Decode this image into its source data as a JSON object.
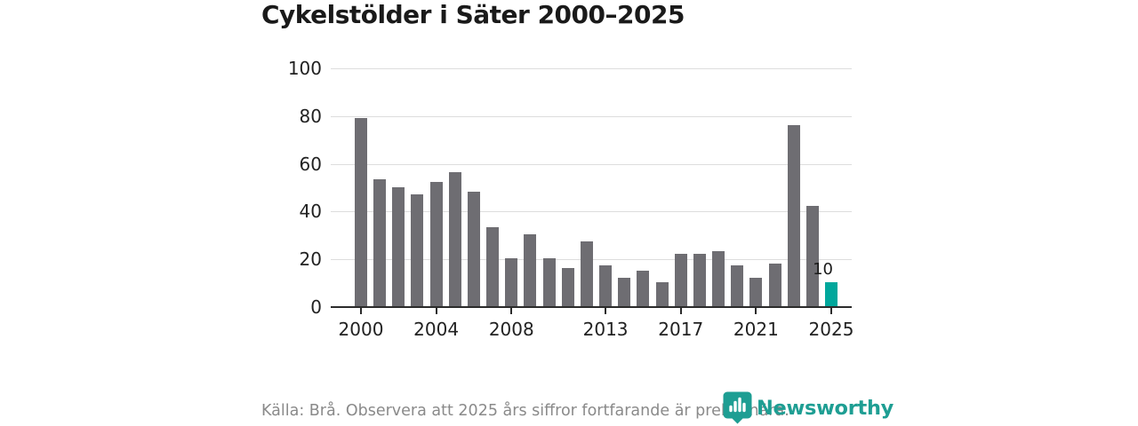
{
  "title": "Cykelstölder i Säter 2000–2025",
  "footer": {
    "source_note": "Källa: Brå. Observera att 2025 års siffror fortfarande är preliminära.",
    "brand_name": "Newsworthy"
  },
  "colors": {
    "bar": "#6e6d72",
    "highlight": "#00a79c",
    "brand_teal": "#1e9e93",
    "grid": "#dddddd",
    "axis": "#2b2b2b",
    "title_text": "#1a1a1a",
    "muted_text": "#8a8a8a"
  },
  "chart_data": {
    "type": "bar",
    "title": "Cykelstölder i Säter 2000–2025",
    "xlabel": "",
    "ylabel": "",
    "ylim": [
      0,
      100
    ],
    "yticks": [
      0,
      20,
      40,
      60,
      80,
      100
    ],
    "xticks": [
      2000,
      2004,
      2008,
      2013,
      2017,
      2021,
      2025
    ],
    "grid": true,
    "categories": [
      2000,
      2001,
      2002,
      2003,
      2004,
      2005,
      2006,
      2007,
      2008,
      2009,
      2010,
      2011,
      2012,
      2013,
      2014,
      2015,
      2016,
      2017,
      2018,
      2019,
      2020,
      2021,
      2022,
      2023,
      2024,
      2025
    ],
    "values": [
      79,
      53,
      50,
      47,
      52,
      56,
      48,
      33,
      20,
      30,
      20,
      16,
      27,
      17,
      12,
      15,
      10,
      22,
      22,
      23,
      17,
      12,
      18,
      76,
      42,
      10
    ],
    "highlight_index": 25,
    "annotations": [
      {
        "x": 2025,
        "text": "10"
      }
    ]
  }
}
